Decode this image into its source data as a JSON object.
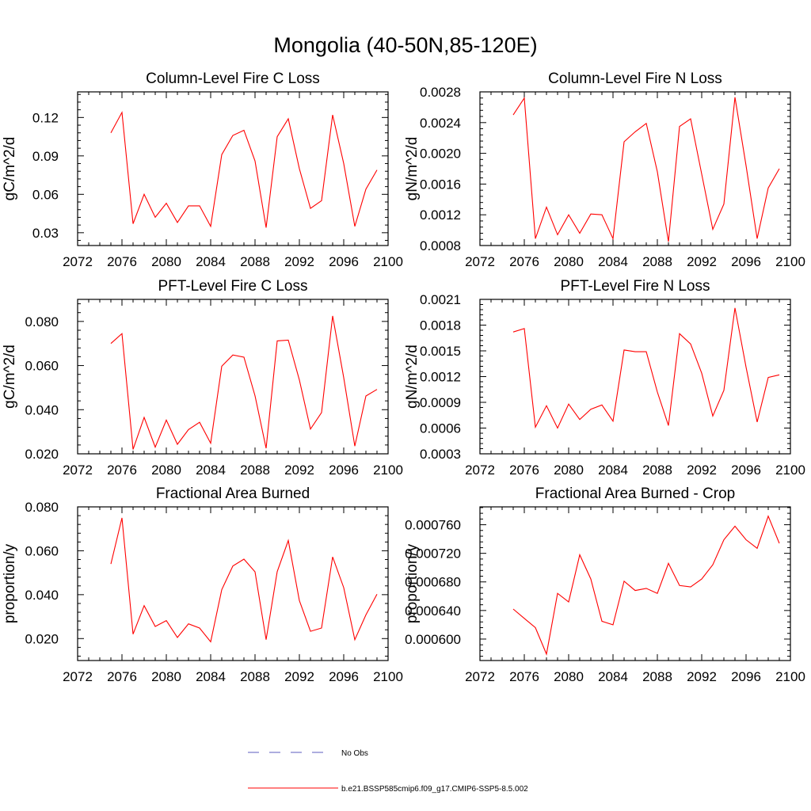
{
  "figure": {
    "title": "Mongolia (40-50N,85-120E)",
    "series_color": "#ff0000",
    "obs_color": "#5b5bbf"
  },
  "legend": {
    "obs_label": "No Obs",
    "model_label": "b.e21.BSSP585cmip6.f09_g17.CMIP6-SSP5-8.5.002"
  },
  "chart_data": [
    {
      "type": "line",
      "title": "Column-Level Fire C Loss",
      "ylabel": "gC/m^2/d",
      "xlabel": "",
      "xlim": [
        2072,
        2100
      ],
      "ylim": [
        0.02,
        0.14
      ],
      "xticks": [
        2072,
        2076,
        2080,
        2084,
        2088,
        2092,
        2096,
        2100
      ],
      "yticks": [
        0.03,
        0.06,
        0.09,
        0.12
      ],
      "yticklabels": [
        "0.03",
        "0.06",
        "0.09",
        "0.12"
      ],
      "series": [
        {
          "x": [
            2075,
            2076,
            2077,
            2078,
            2079,
            2080,
            2081,
            2082,
            2083,
            2084,
            2085,
            2086,
            2087,
            2088,
            2089,
            2090,
            2091,
            2092,
            2093,
            2094,
            2095,
            2096,
            2097,
            2098,
            2099
          ],
          "values": [
            0.108,
            0.124,
            0.037,
            0.06,
            0.042,
            0.053,
            0.038,
            0.051,
            0.051,
            0.035,
            0.091,
            0.106,
            0.11,
            0.086,
            0.034,
            0.105,
            0.119,
            0.08,
            0.049,
            0.055,
            0.122,
            0.084,
            0.035,
            0.064,
            0.079
          ]
        }
      ]
    },
    {
      "type": "line",
      "title": "Column-Level Fire N Loss",
      "ylabel": "gN/m^2/d",
      "xlabel": "",
      "xlim": [
        2072,
        2100
      ],
      "ylim": [
        0.0008,
        0.0028
      ],
      "xticks": [
        2072,
        2076,
        2080,
        2084,
        2088,
        2092,
        2096,
        2100
      ],
      "yticks": [
        0.0008,
        0.0012,
        0.0016,
        0.002,
        0.0024,
        0.0028
      ],
      "yticklabels": [
        "0.0008",
        "0.0012",
        "0.0016",
        "0.0020",
        "0.0024",
        "0.0028"
      ],
      "series": [
        {
          "x": [
            2075,
            2076,
            2077,
            2078,
            2079,
            2080,
            2081,
            2082,
            2083,
            2084,
            2085,
            2086,
            2087,
            2088,
            2089,
            2090,
            2091,
            2092,
            2093,
            2094,
            2095,
            2096,
            2097,
            2098,
            2099
          ],
          "values": [
            0.0025,
            0.00272,
            0.00089,
            0.0013,
            0.00094,
            0.0012,
            0.00096,
            0.00121,
            0.0012,
            0.00089,
            0.00215,
            0.00228,
            0.00239,
            0.00176,
            0.00085,
            0.00235,
            0.00245,
            0.00173,
            0.00101,
            0.00134,
            0.00273,
            0.00184,
            0.00089,
            0.00155,
            0.0018
          ]
        }
      ]
    },
    {
      "type": "line",
      "title": "PFT-Level Fire C Loss",
      "ylabel": "gC/m^2/d",
      "xlabel": "",
      "xlim": [
        2072,
        2100
      ],
      "ylim": [
        0.02,
        0.09
      ],
      "xticks": [
        2072,
        2076,
        2080,
        2084,
        2088,
        2092,
        2096,
        2100
      ],
      "yticks": [
        0.02,
        0.04,
        0.06,
        0.08
      ],
      "yticklabels": [
        "0.020",
        "0.040",
        "0.060",
        "0.080"
      ],
      "series": [
        {
          "x": [
            2075,
            2076,
            2077,
            2078,
            2079,
            2080,
            2081,
            2082,
            2083,
            2084,
            2085,
            2086,
            2087,
            2088,
            2089,
            2090,
            2091,
            2092,
            2093,
            2094,
            2095,
            2096,
            2097,
            2098,
            2099
          ],
          "values": [
            0.07,
            0.0745,
            0.022,
            0.0365,
            0.023,
            0.0353,
            0.0243,
            0.031,
            0.0343,
            0.0248,
            0.0597,
            0.0648,
            0.0638,
            0.0463,
            0.0225,
            0.0712,
            0.0715,
            0.0535,
            0.0312,
            0.0387,
            0.0825,
            0.0545,
            0.0235,
            0.0462,
            0.0492
          ]
        }
      ]
    },
    {
      "type": "line",
      "title": "PFT-Level Fire N Loss",
      "ylabel": "gN/m^2/d",
      "xlabel": "",
      "xlim": [
        2072,
        2100
      ],
      "ylim": [
        0.0003,
        0.0021
      ],
      "xticks": [
        2072,
        2076,
        2080,
        2084,
        2088,
        2092,
        2096,
        2100
      ],
      "yticks": [
        0.0003,
        0.0006,
        0.0009,
        0.0012,
        0.0015,
        0.0018,
        0.0021
      ],
      "yticklabels": [
        "0.0003",
        "0.0006",
        "0.0009",
        "0.0012",
        "0.0015",
        "0.0018",
        "0.0021"
      ],
      "series": [
        {
          "x": [
            2075,
            2076,
            2077,
            2078,
            2079,
            2080,
            2081,
            2082,
            2083,
            2084,
            2085,
            2086,
            2087,
            2088,
            2089,
            2090,
            2091,
            2092,
            2093,
            2094,
            2095,
            2096,
            2097,
            2098,
            2099
          ],
          "values": [
            0.00172,
            0.00176,
            0.00061,
            0.00086,
            0.0006,
            0.00088,
            0.0007,
            0.00082,
            0.00087,
            0.00068,
            0.00151,
            0.00149,
            0.00149,
            0.00102,
            0.00063,
            0.0017,
            0.00158,
            0.00124,
            0.00074,
            0.00104,
            0.002,
            0.00131,
            0.00067,
            0.00119,
            0.00122
          ]
        }
      ]
    },
    {
      "type": "line",
      "title": "Fractional Area Burned",
      "ylabel": "proportion/y",
      "xlabel": "",
      "xlim": [
        2072,
        2100
      ],
      "ylim": [
        0.01,
        0.08
      ],
      "xticks": [
        2072,
        2076,
        2080,
        2084,
        2088,
        2092,
        2096,
        2100
      ],
      "yticks": [
        0.02,
        0.04,
        0.06,
        0.08
      ],
      "yticklabels": [
        "0.020",
        "0.040",
        "0.060",
        "0.080"
      ],
      "series": [
        {
          "x": [
            2075,
            2076,
            2077,
            2078,
            2079,
            2080,
            2081,
            2082,
            2083,
            2084,
            2085,
            2086,
            2087,
            2088,
            2089,
            2090,
            2091,
            2092,
            2093,
            2094,
            2095,
            2096,
            2097,
            2098,
            2099
          ],
          "values": [
            0.054,
            0.075,
            0.022,
            0.035,
            0.0255,
            0.0282,
            0.0205,
            0.0267,
            0.0248,
            0.0185,
            0.0423,
            0.0531,
            0.0562,
            0.0504,
            0.0195,
            0.0505,
            0.0647,
            0.0373,
            0.0233,
            0.0248,
            0.0572,
            0.0432,
            0.0195,
            0.0308,
            0.0402
          ]
        }
      ]
    },
    {
      "type": "line",
      "title": "Fractional Area Burned - Crop",
      "ylabel": "proportion/y",
      "xlabel": "",
      "xlim": [
        2072,
        2100
      ],
      "ylim": [
        0.00057,
        0.000785
      ],
      "xticks": [
        2072,
        2076,
        2080,
        2084,
        2088,
        2092,
        2096,
        2100
      ],
      "yticks": [
        0.0006,
        0.00064,
        0.00068,
        0.00072,
        0.00076
      ],
      "yticklabels": [
        "0.000600",
        "0.000640",
        "0.000680",
        "0.000720",
        "0.000760"
      ],
      "series": [
        {
          "x": [
            2075,
            2076,
            2077,
            2078,
            2079,
            2080,
            2081,
            2082,
            2083,
            2084,
            2085,
            2086,
            2087,
            2088,
            2089,
            2090,
            2091,
            2092,
            2093,
            2094,
            2095,
            2096,
            2097,
            2098,
            2099
          ],
          "values": [
            0.000642,
            0.000629,
            0.000616,
            0.000579,
            0.000664,
            0.000652,
            0.000718,
            0.000684,
            0.000625,
            0.00062,
            0.000681,
            0.000668,
            0.000671,
            0.000664,
            0.000706,
            0.000675,
            0.000673,
            0.000684,
            0.000704,
            0.000739,
            0.000758,
            0.000739,
            0.000727,
            0.000772,
            0.000734
          ]
        }
      ]
    }
  ]
}
